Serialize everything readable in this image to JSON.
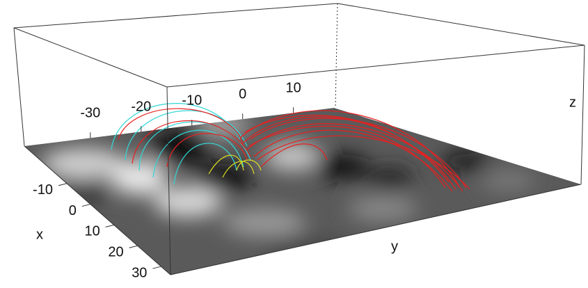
{
  "chart_data": {
    "type": "surface3d",
    "xlabel": "x",
    "ylabel": "y",
    "zlabel": "z",
    "xlim": [
      -28,
      34
    ],
    "xticks": [
      -10,
      0,
      10,
      20,
      30
    ],
    "ylim": [
      -43,
      18
    ],
    "yticks": [
      -30,
      -20,
      -10,
      0,
      10
    ]
  }
}
